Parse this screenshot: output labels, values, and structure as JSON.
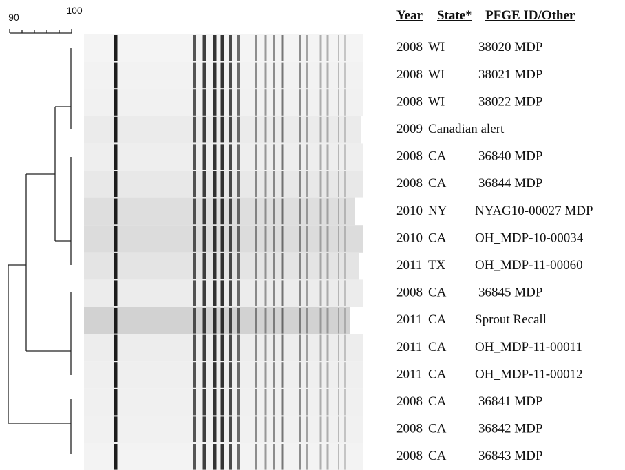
{
  "scale": {
    "min_label": "90",
    "max_label": "100"
  },
  "header": {
    "year": "Year",
    "state": "State*",
    "id": "PFGE ID/Other"
  },
  "rows": [
    [
      "2008",
      "WI",
      "38020 MDP"
    ],
    [
      "2008",
      "WI",
      "38021 MDP"
    ],
    [
      "2008",
      "WI",
      "38022 MDP"
    ],
    [
      "2009",
      "Canadian alert"
    ],
    [
      "2008",
      "CA",
      "36840 MDP"
    ],
    [
      "2008",
      "CA",
      "36844 MDP"
    ],
    [
      "2010",
      "NY",
      "NYAG10-00027 MDP"
    ],
    [
      "2010",
      "CA",
      "OH_MDP-10-00034"
    ],
    [
      "2011",
      "TX",
      "OH_MDP-11-00060"
    ],
    [
      "2008",
      "CA",
      "36845 MDP"
    ],
    [
      "2011",
      "CA",
      "Sprout Recall"
    ],
    [
      "2011",
      "CA",
      "OH_MDP-11-00011"
    ],
    [
      "2011",
      "CA",
      "OH_MDP-11-00012"
    ],
    [
      "2008",
      "CA",
      "36841 MDP"
    ],
    [
      "2008",
      "CA",
      "36842 MDP"
    ],
    [
      "2008",
      "CA",
      "36843 MDP"
    ]
  ]
}
